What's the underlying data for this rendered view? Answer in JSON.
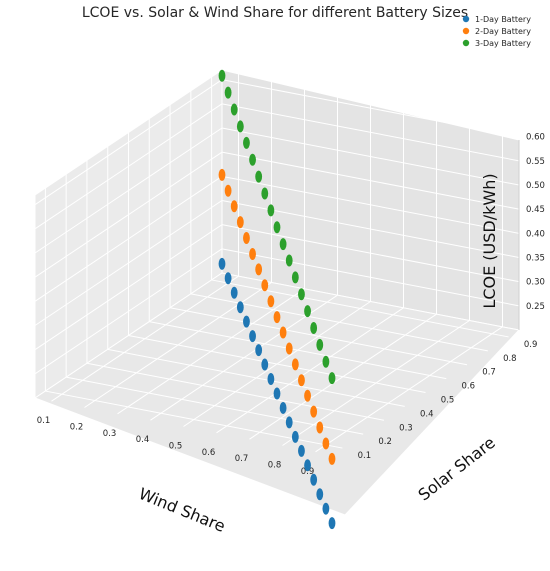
{
  "chart_data": {
    "type": "scatter",
    "projection": "3d",
    "title": "LCOE vs. Solar & Wind Share for different Battery Sizes",
    "xlabel": "Wind Share",
    "ylabel": "Solar Share",
    "zlabel": "LCOE (USD/kWh)",
    "xticks": [
      "0.1",
      "0.2",
      "0.3",
      "0.4",
      "0.5",
      "0.6",
      "0.7",
      "0.8",
      "0.9"
    ],
    "yticks": [
      "0.1",
      "0.2",
      "0.3",
      "0.4",
      "0.5",
      "0.6",
      "0.7",
      "0.8",
      "0.9"
    ],
    "zticks": [
      "0.25",
      "0.30",
      "0.35",
      "0.40",
      "0.45",
      "0.50",
      "0.55",
      "0.60"
    ],
    "xlim": [
      0.05,
      0.95
    ],
    "ylim": [
      0.05,
      0.95
    ],
    "zlim": [
      0.2,
      0.62
    ],
    "grid": true,
    "legend_position": "top-right",
    "series": [
      {
        "name": "1-Day Battery",
        "color": "#1f77b4",
        "points": [
          {
            "wind": 0.05,
            "solar": 0.95,
            "lcoe": 0.219
          },
          {
            "wind": 0.1,
            "solar": 0.9,
            "lcoe": 0.21
          },
          {
            "wind": 0.15,
            "solar": 0.85,
            "lcoe": 0.201
          },
          {
            "wind": 0.2,
            "solar": 0.8,
            "lcoe": 0.192
          },
          {
            "wind": 0.25,
            "solar": 0.75,
            "lcoe": 0.183
          },
          {
            "wind": 0.3,
            "solar": 0.7,
            "lcoe": 0.174
          },
          {
            "wind": 0.35,
            "solar": 0.65,
            "lcoe": 0.166
          },
          {
            "wind": 0.4,
            "solar": 0.6,
            "lcoe": 0.157
          },
          {
            "wind": 0.45,
            "solar": 0.55,
            "lcoe": 0.148
          },
          {
            "wind": 0.5,
            "solar": 0.5,
            "lcoe": 0.139
          },
          {
            "wind": 0.55,
            "solar": 0.45,
            "lcoe": 0.13
          },
          {
            "wind": 0.6,
            "solar": 0.4,
            "lcoe": 0.121
          },
          {
            "wind": 0.65,
            "solar": 0.35,
            "lcoe": 0.112
          },
          {
            "wind": 0.7,
            "solar": 0.3,
            "lcoe": 0.104
          },
          {
            "wind": 0.75,
            "solar": 0.25,
            "lcoe": 0.095
          },
          {
            "wind": 0.8,
            "solar": 0.2,
            "lcoe": 0.086
          },
          {
            "wind": 0.85,
            "solar": 0.15,
            "lcoe": 0.077
          },
          {
            "wind": 0.9,
            "solar": 0.1,
            "lcoe": 0.068
          },
          {
            "wind": 0.95,
            "solar": 0.05,
            "lcoe": 0.059
          }
        ]
      },
      {
        "name": "2-Day Battery",
        "color": "#ff7f0e",
        "points": [
          {
            "wind": 0.05,
            "solar": 0.95,
            "lcoe": 0.403
          },
          {
            "wind": 0.1,
            "solar": 0.9,
            "lcoe": 0.391
          },
          {
            "wind": 0.15,
            "solar": 0.85,
            "lcoe": 0.38
          },
          {
            "wind": 0.2,
            "solar": 0.8,
            "lcoe": 0.368
          },
          {
            "wind": 0.25,
            "solar": 0.75,
            "lcoe": 0.356
          },
          {
            "wind": 0.3,
            "solar": 0.7,
            "lcoe": 0.344
          },
          {
            "wind": 0.35,
            "solar": 0.65,
            "lcoe": 0.333
          },
          {
            "wind": 0.4,
            "solar": 0.6,
            "lcoe": 0.321
          },
          {
            "wind": 0.45,
            "solar": 0.55,
            "lcoe": 0.309
          },
          {
            "wind": 0.5,
            "solar": 0.5,
            "lcoe": 0.297
          },
          {
            "wind": 0.55,
            "solar": 0.45,
            "lcoe": 0.286
          },
          {
            "wind": 0.6,
            "solar": 0.4,
            "lcoe": 0.274
          },
          {
            "wind": 0.65,
            "solar": 0.35,
            "lcoe": 0.262
          },
          {
            "wind": 0.7,
            "solar": 0.3,
            "lcoe": 0.25
          },
          {
            "wind": 0.75,
            "solar": 0.25,
            "lcoe": 0.239
          },
          {
            "wind": 0.8,
            "solar": 0.2,
            "lcoe": 0.227
          },
          {
            "wind": 0.85,
            "solar": 0.15,
            "lcoe": 0.215
          },
          {
            "wind": 0.9,
            "solar": 0.1,
            "lcoe": 0.203
          },
          {
            "wind": 0.95,
            "solar": 0.05,
            "lcoe": 0.192
          }
        ]
      },
      {
        "name": "3-Day Battery",
        "color": "#2ca02c",
        "points": [
          {
            "wind": 0.05,
            "solar": 0.95,
            "lcoe": 0.608
          },
          {
            "wind": 0.1,
            "solar": 0.9,
            "lcoe": 0.594
          },
          {
            "wind": 0.15,
            "solar": 0.85,
            "lcoe": 0.58
          },
          {
            "wind": 0.2,
            "solar": 0.8,
            "lcoe": 0.566
          },
          {
            "wind": 0.25,
            "solar": 0.75,
            "lcoe": 0.553
          },
          {
            "wind": 0.3,
            "solar": 0.7,
            "lcoe": 0.539
          },
          {
            "wind": 0.35,
            "solar": 0.65,
            "lcoe": 0.525
          },
          {
            "wind": 0.4,
            "solar": 0.6,
            "lcoe": 0.511
          },
          {
            "wind": 0.45,
            "solar": 0.55,
            "lcoe": 0.497
          },
          {
            "wind": 0.5,
            "solar": 0.5,
            "lcoe": 0.483
          },
          {
            "wind": 0.55,
            "solar": 0.45,
            "lcoe": 0.469
          },
          {
            "wind": 0.6,
            "solar": 0.4,
            "lcoe": 0.456
          },
          {
            "wind": 0.65,
            "solar": 0.35,
            "lcoe": 0.442
          },
          {
            "wind": 0.7,
            "solar": 0.3,
            "lcoe": 0.428
          },
          {
            "wind": 0.75,
            "solar": 0.25,
            "lcoe": 0.414
          },
          {
            "wind": 0.8,
            "solar": 0.2,
            "lcoe": 0.4
          },
          {
            "wind": 0.85,
            "solar": 0.15,
            "lcoe": 0.386
          },
          {
            "wind": 0.9,
            "solar": 0.1,
            "lcoe": 0.372
          },
          {
            "wind": 0.95,
            "solar": 0.05,
            "lcoe": 0.359
          }
        ]
      }
    ]
  }
}
